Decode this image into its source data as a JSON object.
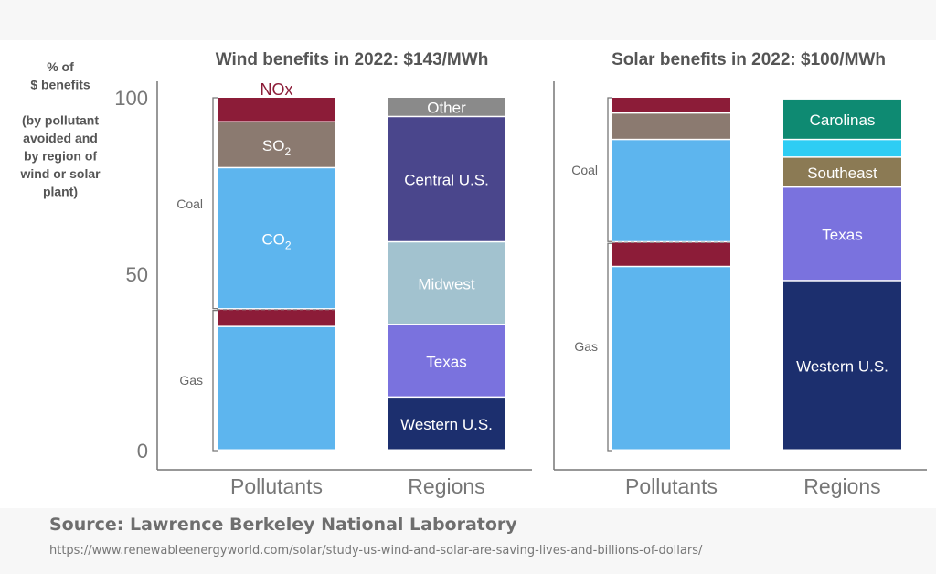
{
  "colors": {
    "nox": "#8c1c38",
    "so2": "#8b7a70",
    "co2": "#5db5ee",
    "other": "#8a8a8a",
    "central": "#4a468c",
    "midwest": "#a2c2cf",
    "texas_wind": "#7a72de",
    "western": "#1c2f6e",
    "carolinas": "#0e8a72",
    "sky": "#2ecdf4",
    "southeast": "#8b7a54",
    "texas_solar": "#7a72de"
  },
  "ylabel_lines": [
    "% of",
    "$ benefits",
    "",
    "(by pollutant",
    "avoided and",
    "by region of",
    "wind or solar",
    "plant)"
  ],
  "source": {
    "label": "Source: Lawrence Berkeley National Laboratory",
    "url": "https://www.renewableenergyworld.com/solar/study-us-wind-and-solar-are-saving-lives-and-billions-of-dollars/"
  },
  "chart_data": [
    {
      "type": "bar",
      "stacked": true,
      "title": "Wind benefits in 2022: $143/MWh",
      "categories": [
        "Pollutants",
        "Regions"
      ],
      "ylim": [
        0,
        100
      ],
      "yticks": [
        0,
        50,
        100
      ],
      "grid": false,
      "bracket_labels": [
        "Coal",
        "Gas"
      ],
      "bars": [
        {
          "category": "Pollutants",
          "coal_gas_divider": 40,
          "segments": [
            {
              "label": "",
              "base": "",
              "sub": "",
              "start": 0,
              "end": 35,
              "color": "co2"
            },
            {
              "label": "",
              "base": "",
              "sub": "",
              "start": 35,
              "end": 40,
              "color": "nox"
            },
            {
              "label": "CO2",
              "base": "CO",
              "sub": "2",
              "start": 40,
              "end": 80,
              "color": "co2"
            },
            {
              "label": "SO2",
              "base": "SO",
              "sub": "2",
              "start": 80,
              "end": 93,
              "color": "so2"
            },
            {
              "label": "NOx",
              "base": "NOx",
              "sub": "",
              "start": 93,
              "end": 100,
              "color": "nox",
              "label_above": true
            }
          ]
        },
        {
          "category": "Regions",
          "segments": [
            {
              "label": "Western U.S.",
              "base": "Western U.S.",
              "sub": "",
              "start": 0,
              "end": 15,
              "color": "western"
            },
            {
              "label": "Texas",
              "base": "Texas",
              "sub": "",
              "start": 15,
              "end": 35.5,
              "color": "texas_wind"
            },
            {
              "label": "Midwest",
              "base": "Midwest",
              "sub": "",
              "start": 35.5,
              "end": 59,
              "color": "midwest"
            },
            {
              "label": "Central U.S.",
              "base": "Central U.S.",
              "sub": "",
              "start": 59,
              "end": 94.5,
              "color": "central"
            },
            {
              "label": "Other",
              "base": "Other",
              "sub": "",
              "start": 94.5,
              "end": 100,
              "color": "other"
            }
          ]
        }
      ]
    },
    {
      "type": "bar",
      "stacked": true,
      "title": "Solar benefits in 2022: $100/MWh",
      "categories": [
        "Pollutants",
        "Regions"
      ],
      "ylim": [
        0,
        100
      ],
      "grid": false,
      "bracket_labels": [
        "Coal",
        "Gas"
      ],
      "bars": [
        {
          "category": "Pollutants",
          "coal_gas_divider": 59,
          "segments": [
            {
              "label": "",
              "base": "",
              "sub": "",
              "start": 0,
              "end": 52,
              "color": "co2"
            },
            {
              "label": "",
              "base": "",
              "sub": "",
              "start": 52,
              "end": 59,
              "color": "nox"
            },
            {
              "label": "",
              "base": "",
              "sub": "",
              "start": 59,
              "end": 88,
              "color": "co2"
            },
            {
              "label": "",
              "base": "",
              "sub": "",
              "start": 88,
              "end": 95.5,
              "color": "so2"
            },
            {
              "label": "",
              "base": "",
              "sub": "",
              "start": 95.5,
              "end": 100,
              "color": "nox"
            }
          ]
        },
        {
          "category": "Regions",
          "segments": [
            {
              "label": "Western U.S.",
              "base": "Western U.S.",
              "sub": "",
              "start": 0,
              "end": 48,
              "color": "western"
            },
            {
              "label": "Texas",
              "base": "Texas",
              "sub": "",
              "start": 48,
              "end": 74.5,
              "color": "texas_solar"
            },
            {
              "label": "Southeast",
              "base": "Southeast",
              "sub": "",
              "start": 74.5,
              "end": 83,
              "color": "southeast"
            },
            {
              "label": "",
              "base": "",
              "sub": "",
              "start": 83,
              "end": 88,
              "color": "sky"
            },
            {
              "label": "Carolinas",
              "base": "Carolinas",
              "sub": "",
              "start": 88,
              "end": 99.5,
              "color": "carolinas"
            }
          ]
        }
      ]
    }
  ]
}
